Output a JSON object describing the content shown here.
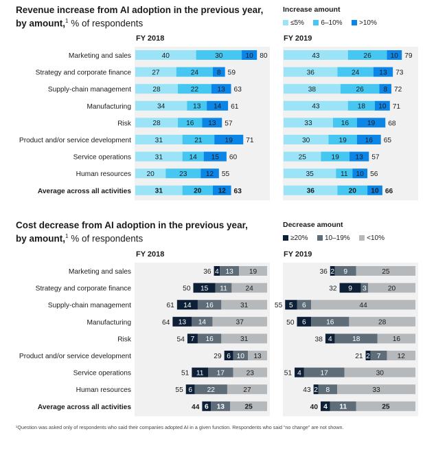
{
  "colors": {
    "rev_low": "#9be4f8",
    "rev_mid": "#45c7f1",
    "rev_high": "#0c86e6",
    "cost_high": "#0c1f36",
    "cost_mid": "#5f6d79",
    "cost_low": "#b6b9bc",
    "panel_bg": "#f1f1f1",
    "text": "#1a1a1a"
  },
  "revenue": {
    "title": "Revenue increase from AI adoption in the previous year,",
    "subtitle_bold": "by amount,",
    "subtitle_sup": "1",
    "subtitle_rest": "% of respondents",
    "legend_title": "Increase amount",
    "legend": [
      "≤5%",
      "6–10%",
      ">10%"
    ]
  },
  "cost": {
    "title": "Cost decrease from AI adoption in the previous year,",
    "subtitle_bold": "by amount,",
    "subtitle_sup": "1",
    "subtitle_rest": "% of respondents",
    "legend_title": "Decrease amount",
    "legend": [
      "≥20%",
      "10–19%",
      "<10%"
    ]
  },
  "footnote": "¹Question was asked only of respondents who said their companies adopted AI in a given function. Respondents who said “no change” are not shown.",
  "chart_data": [
    {
      "type": "bar",
      "orientation": "horizontal",
      "stacked": true,
      "title": "Revenue increase from AI adoption in the previous year, by amount, % of respondents",
      "categories": [
        "Marketing and sales",
        "Strategy and corporate finance",
        "Supply-chain management",
        "Manufacturing",
        "Risk",
        "Product and/or service development",
        "Service operations",
        "Human resources",
        "Average across all activities"
      ],
      "panels": [
        {
          "label": "FY 2018",
          "series": [
            {
              "name": "≤5%",
              "values": [
                40,
                27,
                28,
                34,
                28,
                31,
                31,
                20,
                31
              ]
            },
            {
              "name": "6–10%",
              "values": [
                30,
                24,
                22,
                13,
                16,
                21,
                14,
                23,
                20
              ]
            },
            {
              "name": ">10%",
              "values": [
                10,
                8,
                13,
                14,
                13,
                19,
                15,
                12,
                12
              ]
            }
          ],
          "totals": [
            80,
            59,
            63,
            61,
            57,
            71,
            60,
            55,
            63
          ]
        },
        {
          "label": "FY 2019",
          "series": [
            {
              "name": "≤5%",
              "values": [
                43,
                36,
                38,
                43,
                33,
                30,
                25,
                35,
                36
              ]
            },
            {
              "name": "6–10%",
              "values": [
                26,
                24,
                26,
                18,
                16,
                19,
                19,
                11,
                20
              ]
            },
            {
              "name": ">10%",
              "values": [
                10,
                13,
                8,
                10,
                19,
                16,
                13,
                10,
                10
              ]
            }
          ],
          "totals": [
            79,
            73,
            72,
            71,
            68,
            65,
            57,
            56,
            66
          ]
        }
      ]
    },
    {
      "type": "bar",
      "orientation": "horizontal",
      "stacked": true,
      "title": "Cost decrease from AI adoption in the previous year, by amount, % of respondents",
      "categories": [
        "Marketing and sales",
        "Strategy and corporate finance",
        "Supply-chain management",
        "Manufacturing",
        "Risk",
        "Product and/or service development",
        "Service operations",
        "Human resources",
        "Average across all activities"
      ],
      "panels": [
        {
          "label": "FY 2018",
          "series": [
            {
              "name": "≥20%",
              "values": [
                4,
                15,
                14,
                13,
                7,
                6,
                11,
                6,
                6
              ]
            },
            {
              "name": "10–19%",
              "values": [
                13,
                11,
                16,
                14,
                16,
                10,
                17,
                22,
                13
              ]
            },
            {
              "name": "<10%",
              "values": [
                19,
                24,
                31,
                37,
                31,
                13,
                23,
                27,
                25
              ]
            }
          ],
          "totals": [
            36,
            50,
            61,
            64,
            54,
            29,
            51,
            55,
            44
          ]
        },
        {
          "label": "FY 2019",
          "series": [
            {
              "name": "≥20%",
              "values": [
                2,
                9,
                5,
                6,
                4,
                2,
                4,
                2,
                4
              ]
            },
            {
              "name": "10–19%",
              "values": [
                9,
                3,
                6,
                16,
                18,
                7,
                17,
                8,
                11
              ]
            },
            {
              "name": "<10%",
              "values": [
                25,
                20,
                44,
                28,
                16,
                12,
                30,
                33,
                25
              ]
            }
          ],
          "totals": [
            36,
            32,
            55,
            50,
            38,
            21,
            51,
            43,
            40
          ]
        }
      ]
    }
  ]
}
